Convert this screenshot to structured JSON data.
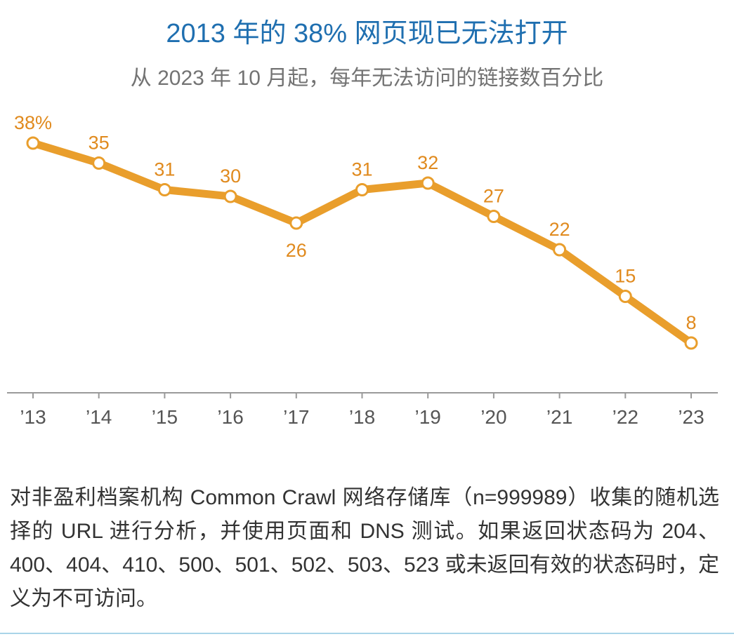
{
  "chart_data": {
    "type": "line",
    "title": "2013 年的 38% 网页现已无法打开",
    "subtitle": "从 2023 年 10 月起，每年无法访问的链接数百分比",
    "categories": [
      "’13",
      "’14",
      "’15",
      "’16",
      "’17",
      "’18",
      "’19",
      "’20",
      "’21",
      "’22",
      "’23"
    ],
    "series": [
      {
        "values": [
          38,
          35,
          31,
          30,
          26,
          31,
          32,
          27,
          22,
          15,
          8
        ],
        "labels": [
          "38%",
          "35",
          "31",
          "30",
          "26",
          "31",
          "32",
          "27",
          "22",
          "15",
          "8"
        ]
      }
    ],
    "label_below": [
      false,
      false,
      false,
      false,
      true,
      false,
      false,
      false,
      false,
      false,
      false
    ],
    "ylim": [
      0,
      40
    ],
    "grid": false,
    "colors": {
      "line": "#e99e2c",
      "label": "#e08a1e",
      "axis": "#9a9a9a",
      "tick_label": "#555555",
      "title": "#1f6fb0",
      "rule": "#a9d4e8"
    }
  },
  "note": "对非盈利档案机构 Common Crawl 网络存储库（n=999989）收集的随机选择的 URL 进行分析，并使用页面和 DNS 测试。如果返回状态码为 204、400、404、410、500、501、502、503、523 或未返回有效的状态码时，定义为不可访问。"
}
